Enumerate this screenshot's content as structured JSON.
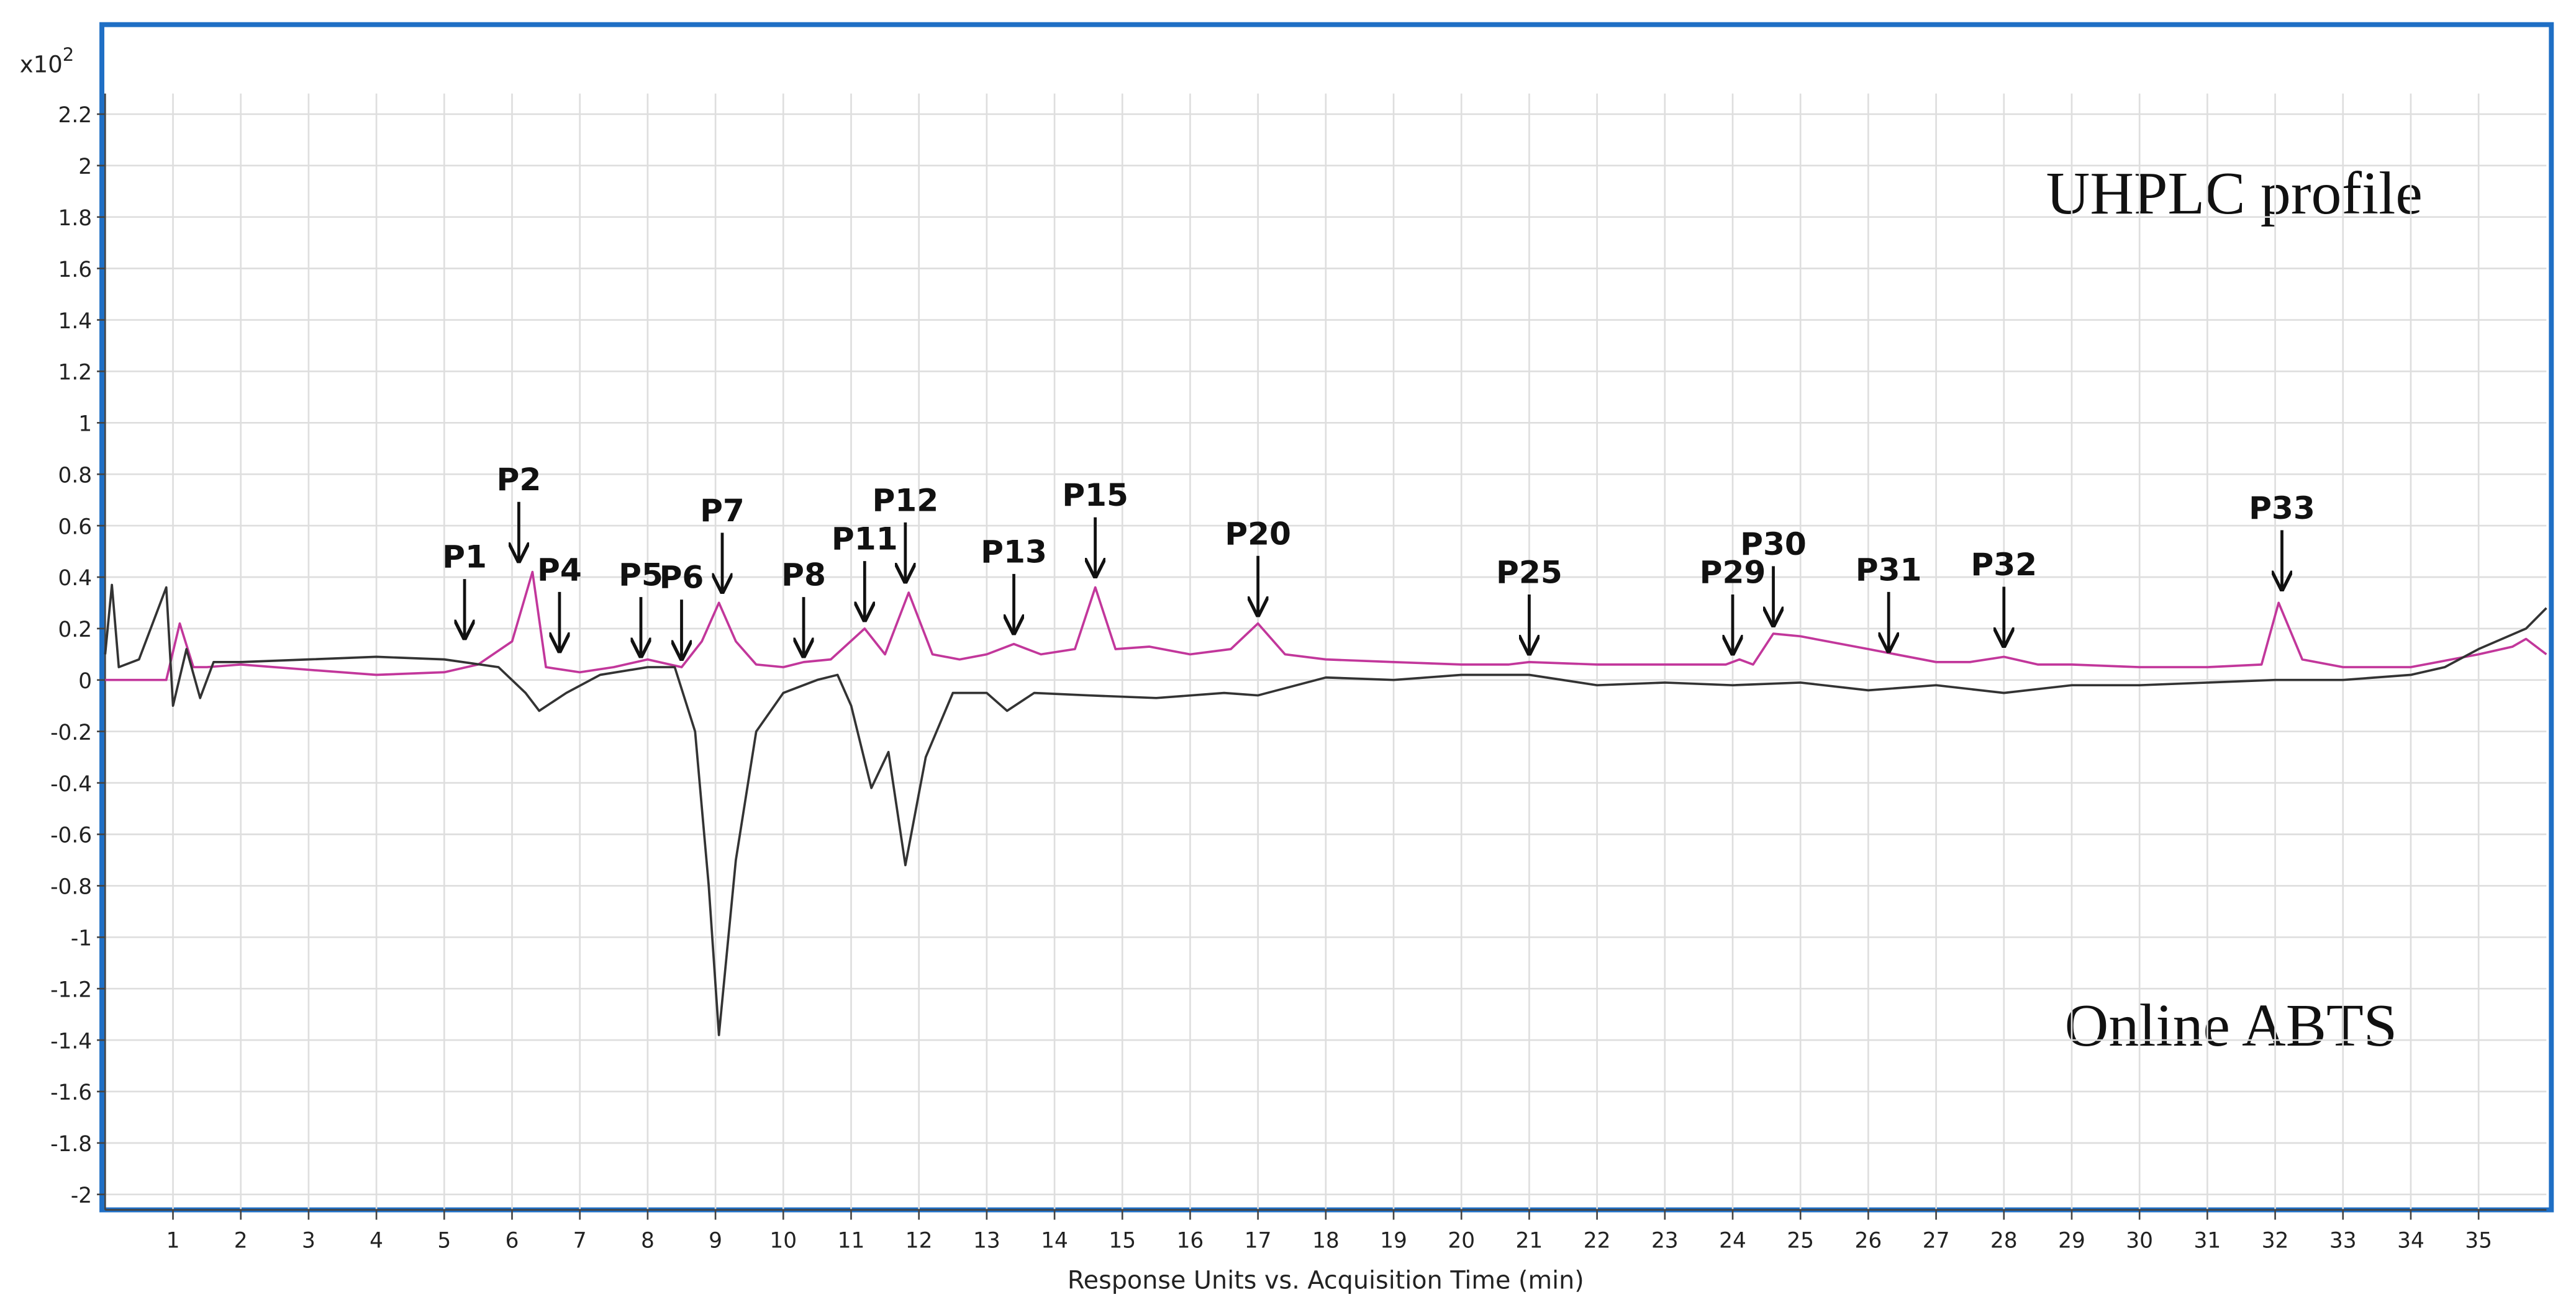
{
  "chart_data": {
    "type": "line",
    "multiplier_label": "x10",
    "multiplier_exponent": "2",
    "xlabel": "Response Units vs. Acquisition Time (min)",
    "texts": [
      "UHPLC profile",
      "Online ABTS"
    ],
    "xlim": [
      0,
      36
    ],
    "ylim": [
      -2.06,
      2.28
    ],
    "xticks": [
      1,
      2,
      3,
      4,
      5,
      6,
      7,
      8,
      9,
      10,
      11,
      12,
      13,
      14,
      15,
      16,
      17,
      18,
      19,
      20,
      21,
      22,
      23,
      24,
      25,
      26,
      27,
      28,
      29,
      30,
      31,
      32,
      33,
      34,
      35
    ],
    "yticks": [
      -2,
      -1.8,
      -1.6,
      -1.4,
      -1.2,
      -1,
      -0.8,
      -0.6,
      -0.4,
      -0.2,
      0,
      0.2,
      0.4,
      0.6,
      0.8,
      1,
      1.2,
      1.4,
      1.6,
      1.8,
      2,
      2.2
    ],
    "grid": true,
    "series": [
      {
        "name": "UHPLC profile",
        "color": "#c2379b",
        "x": [
          0,
          0.9,
          1.1,
          1.3,
          1.5,
          2,
          3,
          4,
          5,
          5.5,
          6,
          6.3,
          6.5,
          7,
          7.5,
          8,
          8.5,
          8.8,
          9.05,
          9.3,
          9.6,
          10,
          10.3,
          10.7,
          11.2,
          11.5,
          11.85,
          12.2,
          12.6,
          13,
          13.4,
          13.8,
          14.3,
          14.6,
          14.9,
          15.4,
          16,
          16.6,
          17,
          17.4,
          18,
          19,
          20,
          20.7,
          21,
          22,
          23,
          23.9,
          24.1,
          24.3,
          24.6,
          25,
          26,
          27,
          27.5,
          28,
          28.5,
          29,
          30,
          31,
          31.8,
          32.05,
          32.4,
          33,
          34,
          35,
          35.5,
          35.7,
          36
        ],
        "values": [
          0,
          0,
          0.22,
          0.05,
          0.05,
          0.06,
          0.04,
          0.02,
          0.03,
          0.06,
          0.15,
          0.42,
          0.05,
          0.03,
          0.05,
          0.08,
          0.05,
          0.15,
          0.3,
          0.15,
          0.06,
          0.05,
          0.07,
          0.08,
          0.2,
          0.1,
          0.34,
          0.1,
          0.08,
          0.1,
          0.14,
          0.1,
          0.12,
          0.36,
          0.12,
          0.13,
          0.1,
          0.12,
          0.22,
          0.1,
          0.08,
          0.07,
          0.06,
          0.06,
          0.07,
          0.06,
          0.06,
          0.06,
          0.08,
          0.06,
          0.18,
          0.17,
          0.12,
          0.07,
          0.07,
          0.09,
          0.06,
          0.06,
          0.05,
          0.05,
          0.06,
          0.3,
          0.08,
          0.05,
          0.05,
          0.1,
          0.13,
          0.16,
          0.1
        ]
      },
      {
        "name": "Online ABTS",
        "color": "#333333",
        "x": [
          0,
          0.1,
          0.2,
          0.5,
          0.9,
          1.0,
          1.2,
          1.4,
          1.6,
          2,
          3,
          4,
          5,
          5.8,
          6.2,
          6.4,
          6.8,
          7.3,
          8,
          8.4,
          8.7,
          8.9,
          9.05,
          9.3,
          9.6,
          10,
          10.5,
          10.8,
          11.0,
          11.3,
          11.55,
          11.8,
          12.1,
          12.5,
          13,
          13.3,
          13.7,
          14.5,
          15.5,
          16.5,
          17,
          18,
          19,
          20,
          21,
          22,
          23,
          24,
          25,
          26,
          27,
          28,
          29,
          30,
          31,
          32,
          33,
          34,
          34.5,
          35,
          35.7,
          36
        ],
        "values": [
          0.1,
          0.37,
          0.05,
          0.08,
          0.36,
          -0.1,
          0.12,
          -0.07,
          0.07,
          0.07,
          0.08,
          0.09,
          0.08,
          0.05,
          -0.05,
          -0.12,
          -0.05,
          0.02,
          0.05,
          0.05,
          -0.2,
          -0.8,
          -1.38,
          -0.7,
          -0.2,
          -0.05,
          0,
          0.02,
          -0.1,
          -0.42,
          -0.28,
          -0.72,
          -0.3,
          -0.05,
          -0.05,
          -0.12,
          -0.05,
          -0.06,
          -0.07,
          -0.05,
          -0.06,
          0.01,
          0,
          0.02,
          0.02,
          -0.02,
          -0.01,
          -0.02,
          -0.01,
          -0.04,
          -0.02,
          -0.05,
          -0.02,
          -0.02,
          -0.01,
          0,
          0,
          0.02,
          0.05,
          0.12,
          0.2,
          0.28
        ]
      }
    ],
    "annotations": [
      {
        "text": "P1",
        "x": 5.3,
        "y": 0.15
      },
      {
        "text": "P2",
        "x": 6.1,
        "y": 0.45
      },
      {
        "text": "P4",
        "x": 6.7,
        "y": 0.1
      },
      {
        "text": "P5",
        "x": 7.9,
        "y": 0.08
      },
      {
        "text": "P6",
        "x": 8.5,
        "y": 0.07
      },
      {
        "text": "P7",
        "x": 9.1,
        "y": 0.33
      },
      {
        "text": "P8",
        "x": 10.3,
        "y": 0.08
      },
      {
        "text": "P11",
        "x": 11.2,
        "y": 0.22
      },
      {
        "text": "P12",
        "x": 11.8,
        "y": 0.37
      },
      {
        "text": "P13",
        "x": 13.4,
        "y": 0.17
      },
      {
        "text": "P15",
        "x": 14.6,
        "y": 0.39
      },
      {
        "text": "P20",
        "x": 17,
        "y": 0.24
      },
      {
        "text": "P25",
        "x": 21,
        "y": 0.09
      },
      {
        "text": "P29",
        "x": 24,
        "y": 0.09
      },
      {
        "text": "P30",
        "x": 24.6,
        "y": 0.2
      },
      {
        "text": "P31",
        "x": 26.3,
        "y": 0.1
      },
      {
        "text": "P32",
        "x": 28,
        "y": 0.12
      },
      {
        "text": "P33",
        "x": 32.1,
        "y": 0.34
      }
    ]
  }
}
